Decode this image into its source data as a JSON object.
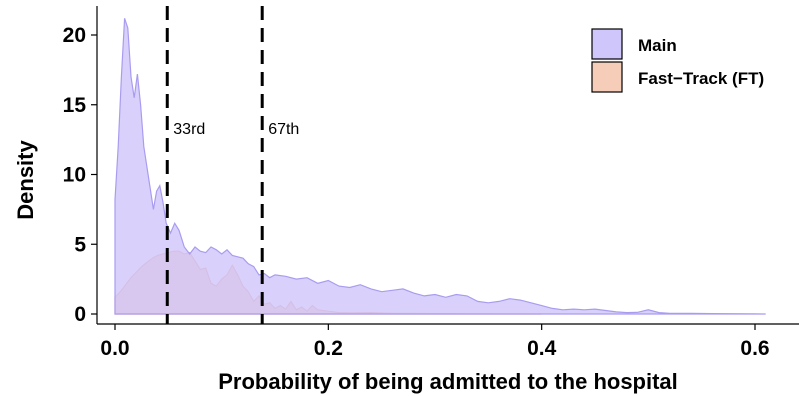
{
  "chart_data": {
    "type": "area",
    "title": "",
    "xlabel": "Probability of being admitted to the hospital",
    "ylabel": "Density",
    "xlim": [
      0,
      0.63
    ],
    "ylim": [
      0,
      22
    ],
    "x_ticks": [
      0.0,
      0.2,
      0.4,
      0.6
    ],
    "x_tick_labels": [
      "0.0",
      "0.2",
      "0.4",
      "0.6"
    ],
    "y_ticks": [
      0,
      5,
      10,
      15,
      20
    ],
    "y_tick_labels": [
      "0",
      "5",
      "10",
      "15",
      "20"
    ],
    "grid": false,
    "legend_position": "top-right",
    "series": [
      {
        "name": "Main",
        "color": "#cfc6fb",
        "line_color": "#a99cf0",
        "points": [
          [
            0.0,
            8.2
          ],
          [
            0.003,
            12
          ],
          [
            0.006,
            17
          ],
          [
            0.009,
            21.2
          ],
          [
            0.012,
            20.5
          ],
          [
            0.015,
            17
          ],
          [
            0.018,
            15.5
          ],
          [
            0.021,
            17.2
          ],
          [
            0.024,
            15
          ],
          [
            0.027,
            12
          ],
          [
            0.03,
            10.5
          ],
          [
            0.033,
            9
          ],
          [
            0.036,
            7.5
          ],
          [
            0.039,
            8.8
          ],
          [
            0.042,
            9.2
          ],
          [
            0.045,
            8
          ],
          [
            0.048,
            6.5
          ],
          [
            0.052,
            5.8
          ],
          [
            0.056,
            6.5
          ],
          [
            0.06,
            6
          ],
          [
            0.065,
            4.8
          ],
          [
            0.07,
            4.3
          ],
          [
            0.075,
            4.8
          ],
          [
            0.08,
            4.5
          ],
          [
            0.085,
            4.4
          ],
          [
            0.09,
            4.8
          ],
          [
            0.095,
            4.6
          ],
          [
            0.1,
            4.3
          ],
          [
            0.105,
            4.6
          ],
          [
            0.11,
            4.2
          ],
          [
            0.115,
            4.1
          ],
          [
            0.12,
            4.0
          ],
          [
            0.125,
            3.6
          ],
          [
            0.13,
            3.4
          ],
          [
            0.135,
            2.8
          ],
          [
            0.14,
            2.9
          ],
          [
            0.145,
            2.6
          ],
          [
            0.15,
            2.8
          ],
          [
            0.16,
            2.7
          ],
          [
            0.17,
            2.5
          ],
          [
            0.18,
            2.6
          ],
          [
            0.19,
            2.2
          ],
          [
            0.2,
            2.4
          ],
          [
            0.21,
            2.0
          ],
          [
            0.22,
            1.9
          ],
          [
            0.23,
            2.1
          ],
          [
            0.24,
            1.8
          ],
          [
            0.25,
            1.6
          ],
          [
            0.26,
            1.7
          ],
          [
            0.27,
            1.8
          ],
          [
            0.28,
            1.5
          ],
          [
            0.29,
            1.3
          ],
          [
            0.3,
            1.4
          ],
          [
            0.31,
            1.2
          ],
          [
            0.32,
            1.4
          ],
          [
            0.33,
            1.3
          ],
          [
            0.34,
            0.9
          ],
          [
            0.35,
            0.8
          ],
          [
            0.36,
            0.9
          ],
          [
            0.37,
            1.1
          ],
          [
            0.38,
            1.0
          ],
          [
            0.39,
            0.8
          ],
          [
            0.4,
            0.6
          ],
          [
            0.41,
            0.4
          ],
          [
            0.42,
            0.3
          ],
          [
            0.43,
            0.35
          ],
          [
            0.44,
            0.3
          ],
          [
            0.45,
            0.35
          ],
          [
            0.46,
            0.25
          ],
          [
            0.47,
            0.15
          ],
          [
            0.48,
            0.1
          ],
          [
            0.49,
            0.12
          ],
          [
            0.5,
            0.3
          ],
          [
            0.51,
            0.1
          ],
          [
            0.52,
            0.05
          ],
          [
            0.54,
            0.05
          ],
          [
            0.56,
            0.03
          ],
          [
            0.58,
            0.02
          ],
          [
            0.6,
            0.01
          ],
          [
            0.61,
            0.0
          ]
        ]
      },
      {
        "name": "Fast−Track (FT)",
        "color": "#f6cdb8",
        "line_color": "#e9a98a",
        "points": [
          [
            0.0,
            1.2
          ],
          [
            0.005,
            1.6
          ],
          [
            0.01,
            2.1
          ],
          [
            0.015,
            2.6
          ],
          [
            0.02,
            3.0
          ],
          [
            0.025,
            3.4
          ],
          [
            0.03,
            3.7
          ],
          [
            0.035,
            4.0
          ],
          [
            0.04,
            4.2
          ],
          [
            0.045,
            4.3
          ],
          [
            0.05,
            4.4
          ],
          [
            0.055,
            4.5
          ],
          [
            0.06,
            4.5
          ],
          [
            0.065,
            4.3
          ],
          [
            0.07,
            4.4
          ],
          [
            0.075,
            3.8
          ],
          [
            0.08,
            3.2
          ],
          [
            0.085,
            3.3
          ],
          [
            0.09,
            2.2
          ],
          [
            0.095,
            2.0
          ],
          [
            0.1,
            2.5
          ],
          [
            0.105,
            2.8
          ],
          [
            0.11,
            3.5
          ],
          [
            0.115,
            2.8
          ],
          [
            0.12,
            2.0
          ],
          [
            0.125,
            1.6
          ],
          [
            0.13,
            0.9
          ],
          [
            0.135,
            1.3
          ],
          [
            0.14,
            0.7
          ],
          [
            0.145,
            0.8
          ],
          [
            0.15,
            0.4
          ],
          [
            0.155,
            0.6
          ],
          [
            0.16,
            0.35
          ],
          [
            0.165,
            0.9
          ],
          [
            0.17,
            0.3
          ],
          [
            0.175,
            0.5
          ],
          [
            0.18,
            0.2
          ],
          [
            0.185,
            0.6
          ],
          [
            0.19,
            0.3
          ],
          [
            0.2,
            0.2
          ],
          [
            0.21,
            0.1
          ],
          [
            0.22,
            0.08
          ],
          [
            0.24,
            0.1
          ],
          [
            0.26,
            0.05
          ],
          [
            0.28,
            0.04
          ],
          [
            0.3,
            0.03
          ],
          [
            0.32,
            0.02
          ],
          [
            0.35,
            0.01
          ],
          [
            0.4,
            0.0
          ]
        ]
      }
    ],
    "reference_lines": [
      {
        "x": 0.049,
        "label": "33rd",
        "style": "dashed"
      },
      {
        "x": 0.138,
        "label": "67th",
        "style": "dashed"
      }
    ]
  }
}
